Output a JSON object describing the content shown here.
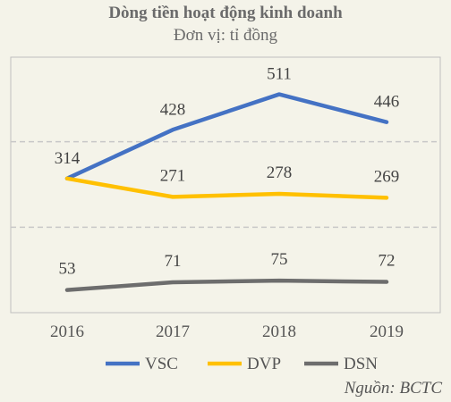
{
  "chart_data": {
    "type": "line",
    "title": "Dòng tiền hoạt động kinh  doanh",
    "subtitle": "Đơn vị: tỉ đồng",
    "x": [
      "2016",
      "2017",
      "2018",
      "2019"
    ],
    "series": [
      {
        "name": "VSC",
        "values": [
          314,
          428,
          511,
          446
        ],
        "color": "#4472c4"
      },
      {
        "name": "DVP",
        "values": [
          314,
          271,
          278,
          269
        ],
        "color": "#ffc000",
        "labels": [
          "",
          "271",
          "278",
          "269"
        ]
      },
      {
        "name": "DSN",
        "values": [
          53,
          71,
          75,
          72
        ],
        "color": "#6d6d6d"
      }
    ],
    "ylim": [
      0,
      600
    ],
    "grid": "dashed horizontal",
    "legend": "bottom",
    "source": "Nguồn: BCTC"
  }
}
